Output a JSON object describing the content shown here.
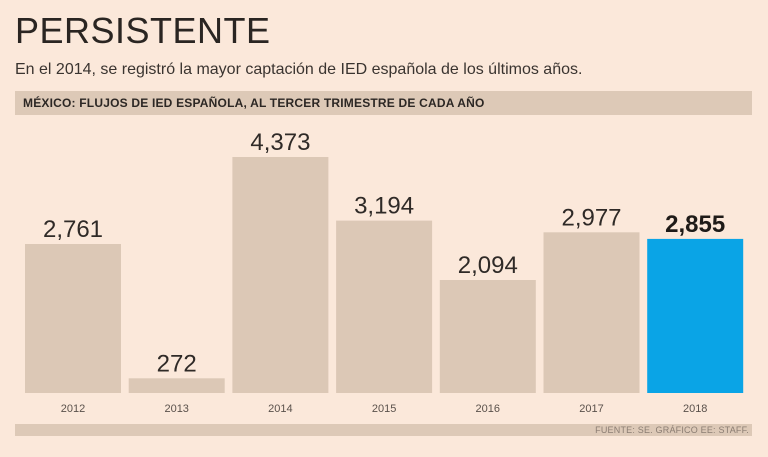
{
  "header": {
    "title": "PERSISTENTE",
    "subtitle": "En el 2014, se registró la mayor captación de IED española de los últimos años."
  },
  "chart_data": {
    "type": "bar",
    "title": "MÉXICO: FLUJOS DE IED ESPAÑOLA, AL TERCER TRIMESTRE DE CADA AÑO",
    "categories": [
      "2012",
      "2013",
      "2014",
      "2015",
      "2016",
      "2017",
      "2018"
    ],
    "values": [
      2761,
      272,
      4373,
      3194,
      2094,
      2977,
      2855
    ],
    "value_labels": [
      "2,761",
      "272",
      "4,373",
      "3,194",
      "2,094",
      "2,977",
      "2,855"
    ],
    "highlight_index": 6,
    "xlabel": "",
    "ylabel": "",
    "ylim": [
      0,
      4373
    ],
    "grid": false,
    "colors": {
      "bar": "#dcc8b6",
      "highlight": "#0aa4e6",
      "background": "#fbe8da"
    }
  },
  "footer": {
    "source": "FUENTE: SE. GRÁFICO EE: STAFF."
  }
}
